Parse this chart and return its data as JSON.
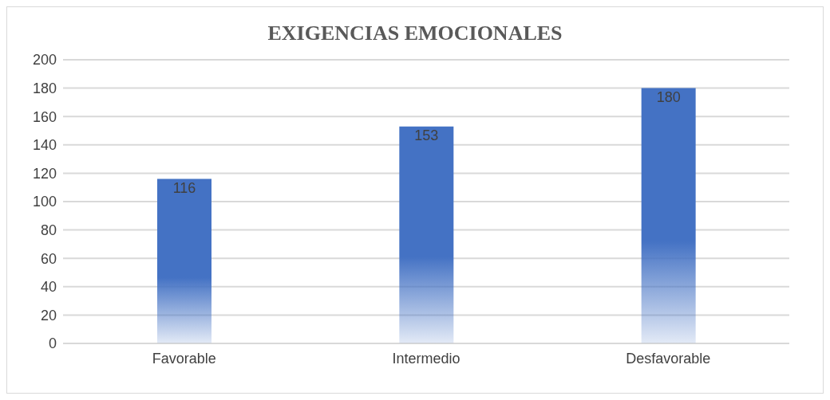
{
  "chart_data": {
    "type": "bar",
    "title": "EXIGENCIAS EMOCIONALES",
    "categories": [
      "Favorable",
      "Intermedio",
      "Desfavorable"
    ],
    "values": [
      116,
      153,
      180
    ],
    "color": "#4472c4",
    "ylim": [
      0,
      200
    ],
    "yticks": [
      0,
      20,
      40,
      60,
      80,
      100,
      120,
      140,
      160,
      180,
      200
    ],
    "grid": "y",
    "data_labels": true
  }
}
